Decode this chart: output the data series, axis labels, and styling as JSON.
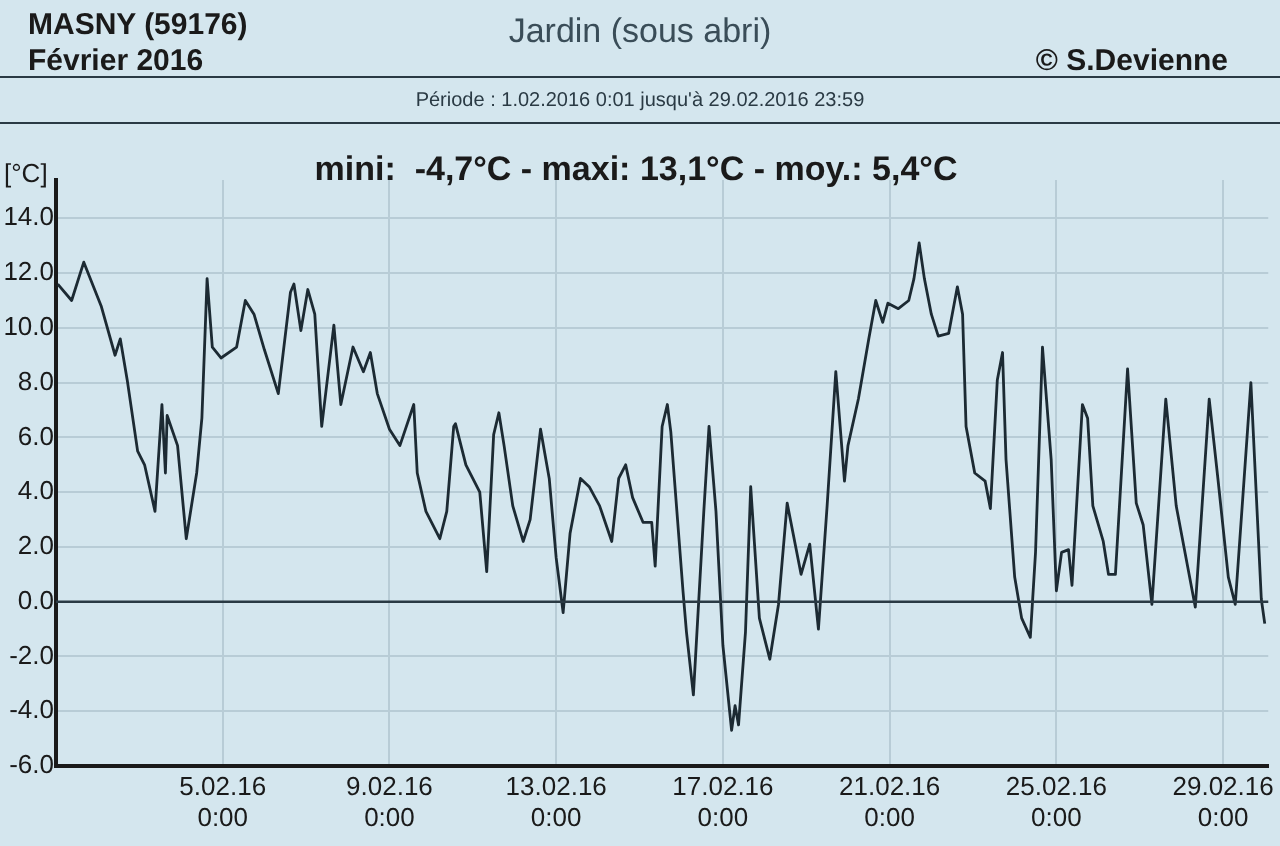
{
  "chart_data": {
    "type": "line",
    "title": "Jardin (sous abri)",
    "subtitle": "Période :  1.02.2016   0:01   jusqu'à  29.02.2016   23:59",
    "ylabel": "[°C]",
    "annotations": [
      "MASNY (59176)",
      "Février  2016",
      "© S.Devienne",
      "mini:  -4,7°C - maxi: 13,1°C - moy.: 5,4°C"
    ],
    "xlim": [
      "2016-02-01T00:00",
      "2016-03-01T02:00"
    ],
    "xticks": [
      {
        "value": "2016-02-05T00:00",
        "label": "5.02.16\n0:00"
      },
      {
        "value": "2016-02-09T00:00",
        "label": "9.02.16\n0:00"
      },
      {
        "value": "2016-02-13T00:00",
        "label": "13.02.16\n0:00"
      },
      {
        "value": "2016-02-17T00:00",
        "label": "17.02.16\n0:00"
      },
      {
        "value": "2016-02-21T00:00",
        "label": "21.02.16\n0:00"
      },
      {
        "value": "2016-02-25T00:00",
        "label": "25.02.16\n0:00"
      },
      {
        "value": "2016-02-29T00:00",
        "label": "29.02.16\n0:00"
      }
    ],
    "ylim": [
      -6,
      15.4
    ],
    "yticks": [
      {
        "value": -6,
        "label": "-6.0"
      },
      {
        "value": -4,
        "label": "-4.0"
      },
      {
        "value": -2,
        "label": "-2.0"
      },
      {
        "value": 0,
        "label": "0.0"
      },
      {
        "value": 2,
        "label": "2.0"
      },
      {
        "value": 4,
        "label": "4.0"
      },
      {
        "value": 6,
        "label": "6.0"
      },
      {
        "value": 8,
        "label": "8.0"
      },
      {
        "value": 10,
        "label": "10.0"
      },
      {
        "value": 12,
        "label": "12.0"
      },
      {
        "value": 14,
        "label": "14.0"
      }
    ],
    "grid": true,
    "marker": "none",
    "line_style": "solid",
    "ref_lines": [
      {
        "axis": "y",
        "value": 0,
        "color": "#2a3a44"
      }
    ],
    "x": [
      "2016-02-01T01:00",
      "2016-02-01T09:00",
      "2016-02-01T16:00",
      "2016-02-02T02:00",
      "2016-02-02T10:00",
      "2016-02-02T13:00",
      "2016-02-02T17:00",
      "2016-02-02T23:00",
      "2016-02-03T03:00",
      "2016-02-03T09:00",
      "2016-02-03T13:00",
      "2016-02-03T15:00",
      "2016-02-03T16:00",
      "2016-02-03T22:00",
      "2016-02-04T03:00",
      "2016-02-04T09:00",
      "2016-02-04T12:00",
      "2016-02-04T15:00",
      "2016-02-04T18:00",
      "2016-02-04T23:00",
      "2016-02-05T08:00",
      "2016-02-05T13:00",
      "2016-02-05T18:00",
      "2016-02-06T00:00",
      "2016-02-06T08:00",
      "2016-02-06T15:00",
      "2016-02-06T17:00",
      "2016-02-06T21:00",
      "2016-02-07T01:00",
      "2016-02-07T05:00",
      "2016-02-07T09:00",
      "2016-02-07T16:00",
      "2016-02-07T20:00",
      "2016-02-08T03:00",
      "2016-02-08T09:00",
      "2016-02-08T13:00",
      "2016-02-08T17:00",
      "2016-02-09T00:00",
      "2016-02-09T06:00",
      "2016-02-09T14:00",
      "2016-02-09T16:00",
      "2016-02-09T21:00",
      "2016-02-10T05:00",
      "2016-02-10T09:00",
      "2016-02-10T13:00",
      "2016-02-10T14:00",
      "2016-02-10T20:00",
      "2016-02-11T04:00",
      "2016-02-11T08:00",
      "2016-02-11T12:00",
      "2016-02-11T15:00",
      "2016-02-11T18:00",
      "2016-02-11T23:00",
      "2016-02-12T05:00",
      "2016-02-12T09:00",
      "2016-02-12T15:00",
      "2016-02-12T20:00",
      "2016-02-13T00:00",
      "2016-02-13T04:00",
      "2016-02-13T08:00",
      "2016-02-13T14:00",
      "2016-02-13T19:00",
      "2016-02-14T01:00",
      "2016-02-14T08:00",
      "2016-02-14T12:00",
      "2016-02-14T16:00",
      "2016-02-14T20:00",
      "2016-02-15T02:00",
      "2016-02-15T07:00",
      "2016-02-15T09:00",
      "2016-02-15T13:00",
      "2016-02-15T16:00",
      "2016-02-15T18:00",
      "2016-02-16T01:00",
      "2016-02-16T03:00",
      "2016-02-16T07:00",
      "2016-02-16T13:00",
      "2016-02-16T16:00",
      "2016-02-16T20:00",
      "2016-02-17T00:00",
      "2016-02-17T05:00",
      "2016-02-17T07:00",
      "2016-02-17T09:00",
      "2016-02-17T13:00",
      "2016-02-17T16:00",
      "2016-02-17T21:00",
      "2016-02-18T03:00",
      "2016-02-18T08:00",
      "2016-02-18T13:00",
      "2016-02-18T21:00",
      "2016-02-19T02:00",
      "2016-02-19T07:00",
      "2016-02-19T12:00",
      "2016-02-19T17:00",
      "2016-02-19T22:00",
      "2016-02-20T00:00",
      "2016-02-20T06:00",
      "2016-02-20T12:00",
      "2016-02-20T16:00",
      "2016-02-20T20:00",
      "2016-02-20T23:00",
      "2016-02-21T05:00",
      "2016-02-21T11:00",
      "2016-02-21T14:00",
      "2016-02-21T17:00",
      "2016-02-21T20:00",
      "2016-02-22T00:00",
      "2016-02-22T04:00",
      "2016-02-22T10:00",
      "2016-02-22T15:00",
      "2016-02-22T18:00",
      "2016-02-22T20:00",
      "2016-02-23T01:00",
      "2016-02-23T07:00",
      "2016-02-23T10:00",
      "2016-02-23T14:00",
      "2016-02-23T17:00",
      "2016-02-23T19:00",
      "2016-02-24T00:00",
      "2016-02-24T04:00",
      "2016-02-24T09:00",
      "2016-02-24T12:00",
      "2016-02-24T16:00",
      "2016-02-24T21:00",
      "2016-02-25T00:00",
      "2016-02-25T03:00",
      "2016-02-25T07:00",
      "2016-02-25T09:00",
      "2016-02-25T15:00",
      "2016-02-25T18:00",
      "2016-02-25T21:00",
      "2016-02-26T03:00",
      "2016-02-26T06:00",
      "2016-02-26T10:00",
      "2016-02-26T17:00",
      "2016-02-26T22:00",
      "2016-02-27T02:00",
      "2016-02-27T07:00",
      "2016-02-27T15:00",
      "2016-02-27T21:00",
      "2016-02-28T08:00",
      "2016-02-28T16:00",
      "2016-02-28T21:00",
      "2016-02-29T03:00",
      "2016-02-29T07:00",
      "2016-02-29T16:00",
      "2016-02-29T22:00",
      "2016-02-29T23:59"
    ],
    "series": [
      {
        "color": "#1c2a33",
        "values": [
          11.6,
          11.0,
          12.4,
          10.8,
          9.0,
          9.6,
          8.1,
          5.5,
          5.0,
          3.3,
          7.2,
          4.7,
          6.8,
          5.7,
          2.3,
          4.7,
          6.7,
          11.8,
          9.3,
          8.9,
          9.3,
          11.0,
          10.5,
          9.2,
          7.6,
          11.3,
          11.6,
          9.9,
          11.4,
          10.5,
          6.4,
          10.1,
          7.2,
          9.3,
          8.4,
          9.1,
          7.6,
          6.3,
          5.7,
          7.2,
          4.7,
          3.3,
          2.3,
          3.3,
          6.4,
          6.5,
          5.0,
          4.0,
          1.1,
          6.1,
          6.9,
          5.7,
          3.5,
          2.2,
          3.0,
          6.3,
          4.5,
          1.6,
          -0.4,
          2.5,
          4.5,
          4.2,
          3.5,
          2.2,
          4.5,
          5.0,
          3.8,
          2.9,
          2.9,
          1.3,
          6.4,
          7.2,
          6.2,
          0.4,
          -1.1,
          -3.4,
          3.3,
          6.4,
          3.3,
          -1.6,
          -4.7,
          -3.8,
          -4.5,
          -1.1,
          4.2,
          -0.6,
          -2.1,
          -0.1,
          3.6,
          1.0,
          2.1,
          -1.0,
          3.5,
          8.4,
          4.4,
          5.7,
          7.4,
          9.6,
          11.0,
          10.2,
          10.9,
          10.7,
          11.0,
          11.8,
          13.1,
          11.8,
          10.5,
          9.7,
          9.8,
          11.5,
          10.5,
          6.4,
          4.7,
          4.4,
          3.4,
          8.1,
          9.1,
          5.2,
          0.9,
          -0.6,
          -1.3,
          1.8,
          9.3,
          5.2,
          0.4,
          1.8,
          1.9,
          0.6,
          7.2,
          6.7,
          3.5,
          2.2,
          1.0,
          1.0,
          8.5,
          3.6,
          2.8,
          -0.1,
          7.4,
          3.5,
          -0.2,
          7.4,
          4.5,
          0.9,
          -0.1,
          8.0,
          0.1,
          -0.8
        ]
      }
    ]
  }
}
